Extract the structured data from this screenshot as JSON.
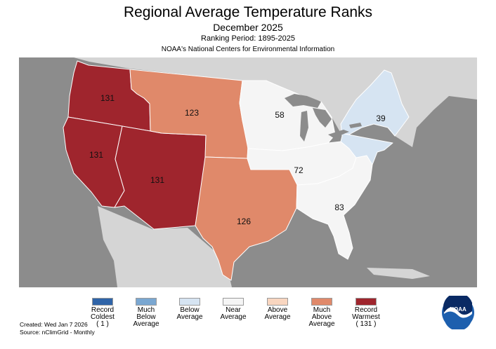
{
  "header": {
    "title": "Regional Average Temperature Ranks",
    "period": "December 2025",
    "ranking_period": "Ranking Period: 1895-2025",
    "source_org": "NOAA's National Centers for Environmental Information"
  },
  "colors": {
    "record_coldest": "#2f64a8",
    "much_below": "#7aa7d1",
    "below": "#d6e4f2",
    "near": "#f5f5f5",
    "above": "#f9d6c0",
    "much_above": "#e0896a",
    "record_warmest": "#9f252d",
    "land_outside": "#d5d5d5",
    "water": "#8c8c8c"
  },
  "regions": [
    {
      "name": "Northwest",
      "rank": "131",
      "category": "record_warmest"
    },
    {
      "name": "West",
      "rank": "131",
      "category": "record_warmest"
    },
    {
      "name": "Southwest",
      "rank": "131",
      "category": "record_warmest"
    },
    {
      "name": "Northern Rockies and Plains",
      "rank": "123",
      "category": "much_above"
    },
    {
      "name": "South",
      "rank": "126",
      "category": "much_above"
    },
    {
      "name": "Upper Midwest",
      "rank": "58",
      "category": "near"
    },
    {
      "name": "Ohio Valley",
      "rank": "72",
      "category": "near"
    },
    {
      "name": "Southeast",
      "rank": "83",
      "category": "near"
    },
    {
      "name": "Northeast",
      "rank": "39",
      "category": "below"
    }
  ],
  "legend": [
    {
      "line1": "Record",
      "line2": "Coldest",
      "line3": "",
      "rank": "( 1 )",
      "category": "record_coldest"
    },
    {
      "line1": "Much",
      "line2": "Below",
      "line3": "Average",
      "rank": "",
      "category": "much_below"
    },
    {
      "line1": "Below",
      "line2": "Average",
      "line3": "",
      "rank": "",
      "category": "below"
    },
    {
      "line1": "Near",
      "line2": "Average",
      "line3": "",
      "rank": "",
      "category": "near"
    },
    {
      "line1": "Above",
      "line2": "Average",
      "line3": "",
      "rank": "",
      "category": "above"
    },
    {
      "line1": "Much",
      "line2": "Above",
      "line3": "Average",
      "rank": "",
      "category": "much_above"
    },
    {
      "line1": "Record",
      "line2": "Warmest",
      "line3": "",
      "rank": "( 131 )",
      "category": "record_warmest"
    }
  ],
  "footer": {
    "created": "Created: Wed Jan  7 2026",
    "source": "Source: nClimGrid - Monthly"
  },
  "logo": {
    "text": "NOAA"
  }
}
